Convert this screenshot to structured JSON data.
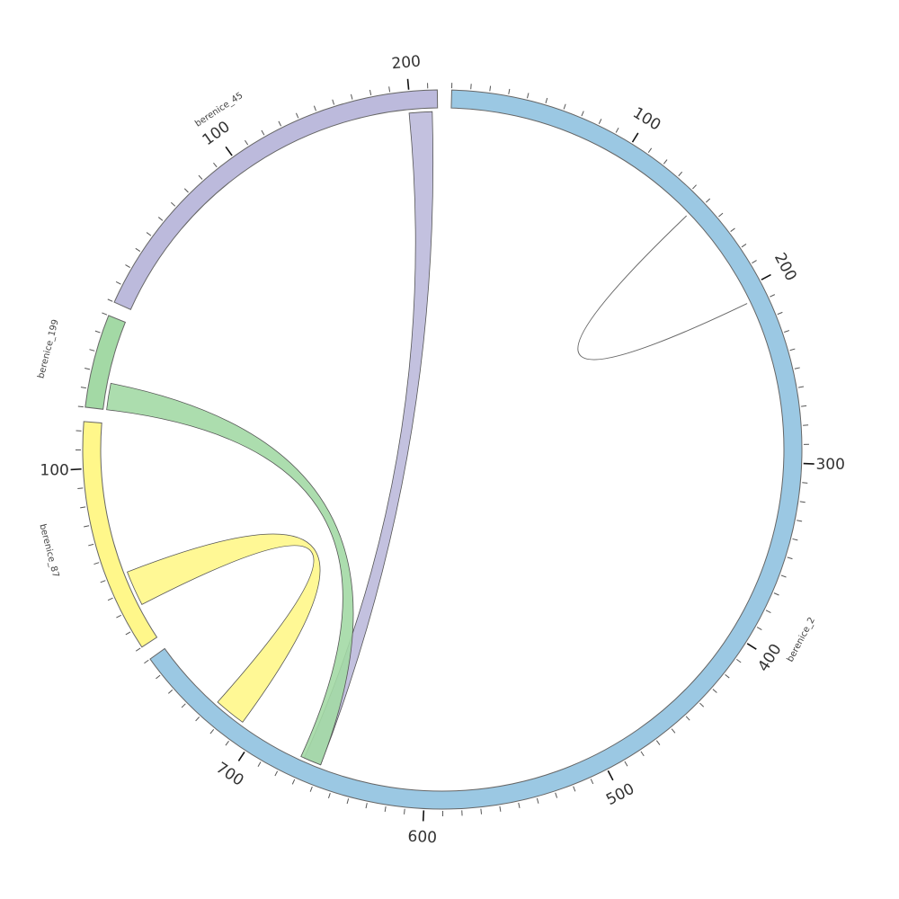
{
  "chart_data": {
    "type": "chord",
    "title": "",
    "segments": [
      {
        "name": "berenice_2",
        "length": 770,
        "color": "#9bc8e3",
        "major_ticks": [
          100,
          200,
          300,
          400,
          500,
          600,
          700
        ],
        "major_tick_labels": [
          "100",
          "200",
          "300",
          "400",
          "500",
          "600",
          "700"
        ]
      },
      {
        "name": "berenice_87",
        "length": 125,
        "color": "#fff78a",
        "major_ticks": [
          100
        ],
        "major_tick_labels": [
          "100"
        ]
      },
      {
        "name": "berenice_199",
        "length": 50,
        "color": "#a3d9a5",
        "major_ticks": [],
        "major_tick_labels": []
      },
      {
        "name": "berenice_45",
        "length": 215,
        "color": "#bcbadc",
        "major_ticks": [
          100,
          200
        ],
        "major_tick_labels": [
          "100",
          "200"
        ]
      }
    ],
    "links": [
      {
        "from": {
          "segment": "berenice_45",
          "start": 199,
          "end": 212
        },
        "to": {
          "segment": "berenice_2",
          "start": 660,
          "end": 670
        },
        "color": "#bcbadc"
      },
      {
        "from": {
          "segment": "berenice_199",
          "start": 0,
          "end": 15
        },
        "to": {
          "segment": "berenice_2",
          "start": 660,
          "end": 672
        },
        "color": "#a3d9a5"
      },
      {
        "from": {
          "segment": "berenice_87",
          "start": 20,
          "end": 40
        },
        "to": {
          "segment": "berenice_2",
          "start": 710,
          "end": 728
        },
        "color": "#fff78a"
      },
      {
        "from": {
          "segment": "berenice_2",
          "start": 148,
          "end": 148
        },
        "to": {
          "segment": "berenice_2",
          "start": 208,
          "end": 208
        },
        "color": "#666666"
      }
    ]
  }
}
